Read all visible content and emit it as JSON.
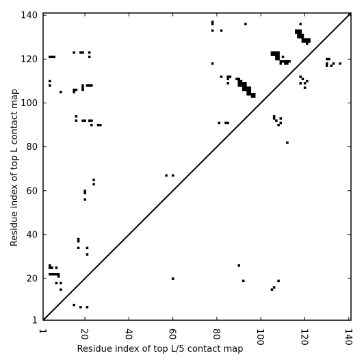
{
  "chart_data": {
    "type": "heatmap",
    "xlabel": "Residue index of top L/5 contact map",
    "ylabel": "Residue index of top L contact map",
    "xlim": [
      1,
      141
    ],
    "ylim": [
      1,
      141
    ],
    "x_ticks": [
      1,
      20,
      40,
      60,
      80,
      100,
      120,
      140
    ],
    "y_ticks": [
      1,
      20,
      40,
      60,
      80,
      100,
      120,
      140
    ],
    "diagonal": true,
    "grid": false,
    "upper_triangle_contacts": [
      [
        4,
        121
      ],
      [
        5,
        121
      ],
      [
        6,
        121
      ],
      [
        4,
        110
      ],
      [
        4,
        108
      ],
      [
        9,
        105
      ],
      [
        15,
        123
      ],
      [
        18,
        123
      ],
      [
        19,
        123
      ],
      [
        22,
        123
      ],
      [
        22,
        121
      ],
      [
        15,
        106
      ],
      [
        16,
        106
      ],
      [
        15,
        105
      ],
      [
        19,
        108
      ],
      [
        19,
        107
      ],
      [
        19,
        106
      ],
      [
        21,
        108
      ],
      [
        22,
        108
      ],
      [
        23,
        108
      ],
      [
        16,
        94
      ],
      [
        16,
        92
      ],
      [
        19,
        92
      ],
      [
        20,
        92
      ],
      [
        22,
        92
      ],
      [
        23,
        92
      ],
      [
        23,
        90
      ],
      [
        26,
        90
      ],
      [
        27,
        90
      ],
      [
        20,
        60
      ],
      [
        20,
        59
      ],
      [
        20,
        56
      ],
      [
        24,
        65
      ],
      [
        24,
        63
      ],
      [
        17,
        38
      ],
      [
        17,
        37
      ],
      [
        17,
        34
      ],
      [
        21,
        34
      ],
      [
        21,
        31
      ],
      [
        57,
        67
      ],
      [
        60,
        67
      ],
      [
        78,
        137
      ],
      [
        78,
        136
      ],
      [
        78,
        133
      ],
      [
        82,
        133
      ],
      [
        93,
        136
      ],
      [
        78,
        118
      ],
      [
        82,
        112
      ],
      [
        85,
        112
      ],
      [
        86,
        112
      ],
      [
        85,
        111
      ],
      [
        85,
        109
      ],
      [
        81,
        91
      ],
      [
        84,
        91
      ],
      [
        85,
        91
      ],
      [
        89,
        111
      ],
      [
        90,
        111
      ],
      [
        90,
        110
      ],
      [
        91,
        110
      ],
      [
        90,
        109
      ],
      [
        91,
        109
      ],
      [
        92,
        109
      ],
      [
        93,
        109
      ],
      [
        90,
        108
      ],
      [
        91,
        108
      ],
      [
        92,
        108
      ],
      [
        93,
        108
      ],
      [
        92,
        107
      ],
      [
        93,
        107
      ],
      [
        94,
        107
      ],
      [
        95,
        107
      ],
      [
        92,
        106
      ],
      [
        93,
        106
      ],
      [
        94,
        106
      ],
      [
        95,
        106
      ],
      [
        94,
        105
      ],
      [
        95,
        105
      ],
      [
        94,
        104
      ],
      [
        95,
        104
      ],
      [
        96,
        104
      ],
      [
        97,
        104
      ],
      [
        96,
        103
      ],
      [
        97,
        103
      ],
      [
        105,
        123
      ],
      [
        106,
        123
      ],
      [
        107,
        123
      ],
      [
        108,
        123
      ],
      [
        105,
        122
      ],
      [
        106,
        122
      ],
      [
        107,
        122
      ],
      [
        108,
        122
      ],
      [
        107,
        121
      ],
      [
        108,
        121
      ],
      [
        107,
        120
      ],
      [
        108,
        120
      ],
      [
        110,
        121
      ],
      [
        109,
        119
      ],
      [
        110,
        119
      ],
      [
        111,
        119
      ],
      [
        112,
        119
      ],
      [
        113,
        119
      ],
      [
        109,
        118
      ],
      [
        111,
        118
      ],
      [
        112,
        118
      ],
      [
        116,
        133
      ],
      [
        117,
        133
      ],
      [
        118,
        133
      ],
      [
        116,
        132
      ],
      [
        117,
        132
      ],
      [
        118,
        132
      ],
      [
        117,
        131
      ],
      [
        118,
        131
      ],
      [
        119,
        131
      ],
      [
        117,
        130
      ],
      [
        118,
        130
      ],
      [
        119,
        130
      ],
      [
        119,
        129
      ],
      [
        120,
        129
      ],
      [
        121,
        129
      ],
      [
        122,
        129
      ],
      [
        119,
        128
      ],
      [
        120,
        128
      ],
      [
        121,
        128
      ],
      [
        122,
        128
      ],
      [
        121,
        127
      ],
      [
        118,
        136
      ],
      [
        118,
        112
      ],
      [
        119,
        111
      ],
      [
        121,
        110
      ],
      [
        118,
        109
      ],
      [
        120,
        109
      ],
      [
        120,
        107
      ],
      [
        106,
        94
      ],
      [
        106,
        93
      ],
      [
        107,
        92
      ],
      [
        109,
        93
      ],
      [
        109,
        91
      ],
      [
        108,
        90
      ],
      [
        112,
        82
      ],
      [
        130,
        120
      ],
      [
        131,
        120
      ],
      [
        130,
        118
      ],
      [
        133,
        118
      ],
      [
        136,
        118
      ],
      [
        130,
        117
      ],
      [
        132,
        117
      ]
    ],
    "lower_triangle_contacts": [
      [
        4,
        26
      ],
      [
        4,
        25
      ],
      [
        5,
        25
      ],
      [
        7,
        25
      ],
      [
        4,
        22
      ],
      [
        5,
        22
      ],
      [
        6,
        22
      ],
      [
        7,
        22
      ],
      [
        8,
        22
      ],
      [
        8,
        21
      ],
      [
        7,
        18
      ],
      [
        9,
        18
      ],
      [
        9,
        15
      ],
      [
        15,
        8
      ],
      [
        18,
        7
      ],
      [
        21,
        7
      ],
      [
        60,
        20
      ],
      [
        90,
        26
      ],
      [
        92,
        19
      ],
      [
        108,
        19
      ],
      [
        106,
        16
      ],
      [
        105,
        15
      ]
    ]
  }
}
